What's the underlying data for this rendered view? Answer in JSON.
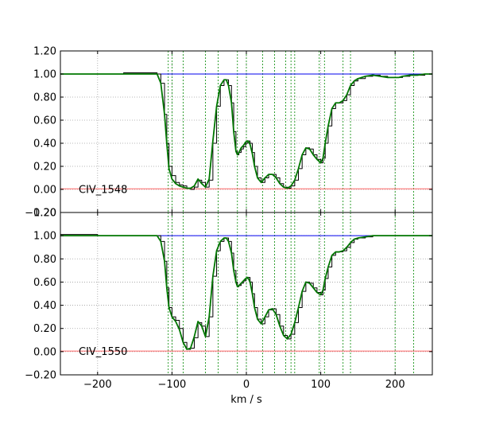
{
  "chart_data": [
    {
      "type": "line",
      "panel_label": "CIV_1548",
      "xlabel": "",
      "ylabel": "",
      "xlim": [
        -250,
        250
      ],
      "ylim": [
        -0.2,
        1.2
      ],
      "yticks": [
        -0.2,
        0.0,
        0.2,
        0.4,
        0.6,
        0.8,
        1.0,
        1.2
      ],
      "yticklabels": [
        "−0.20",
        "0.00",
        "0.20",
        "0.40",
        "0.60",
        "0.80",
        "1.00",
        "1.20"
      ],
      "grid": true,
      "component_velocities": [
        -105,
        -100,
        -85,
        -55,
        -38,
        -12,
        0,
        22,
        38,
        53,
        60,
        65,
        98,
        105,
        130,
        140,
        200,
        225
      ],
      "series": [
        {
          "role": "data",
          "color": "#000000",
          "x": [
            -250,
            -200,
            -165,
            -120,
            -115,
            -110,
            -107,
            -104,
            -100,
            -95,
            -90,
            -85,
            -80,
            -75,
            -70,
            -65,
            -60,
            -55,
            -50,
            -45,
            -40,
            -35,
            -30,
            -27,
            -24,
            -20,
            -17,
            -14,
            -12,
            -10,
            -7,
            -4,
            -1,
            2,
            5,
            8,
            11,
            15,
            20,
            25,
            30,
            35,
            40,
            45,
            50,
            55,
            60,
            65,
            70,
            75,
            80,
            85,
            90,
            95,
            100,
            103,
            106,
            110,
            115,
            120,
            125,
            130,
            135,
            140,
            145,
            150,
            160,
            170,
            180,
            190,
            200,
            205,
            210,
            220,
            230,
            240,
            250
          ],
          "y": [
            1.0,
            1.0,
            1.01,
            1.0,
            0.92,
            0.65,
            0.4,
            0.2,
            0.12,
            0.06,
            0.04,
            0.03,
            0.01,
            0.0,
            0.02,
            0.08,
            0.06,
            0.02,
            0.08,
            0.4,
            0.72,
            0.9,
            0.95,
            0.95,
            0.9,
            0.75,
            0.5,
            0.33,
            0.3,
            0.32,
            0.35,
            0.37,
            0.4,
            0.42,
            0.4,
            0.32,
            0.2,
            0.1,
            0.06,
            0.1,
            0.13,
            0.13,
            0.1,
            0.05,
            0.02,
            0.01,
            0.03,
            0.08,
            0.18,
            0.3,
            0.36,
            0.35,
            0.3,
            0.26,
            0.23,
            0.27,
            0.4,
            0.55,
            0.7,
            0.75,
            0.75,
            0.77,
            0.82,
            0.9,
            0.94,
            0.96,
            0.98,
            0.99,
            0.98,
            0.97,
            0.97,
            0.97,
            0.98,
            0.99,
            0.99,
            1.0,
            1.0
          ]
        },
        {
          "role": "model",
          "color": "#007700",
          "x": [
            -250,
            -200,
            -165,
            -120,
            -115,
            -110,
            -107,
            -104,
            -100,
            -95,
            -90,
            -85,
            -80,
            -75,
            -70,
            -65,
            -60,
            -55,
            -50,
            -45,
            -40,
            -35,
            -30,
            -27,
            -24,
            -20,
            -17,
            -14,
            -12,
            -10,
            -7,
            -4,
            -1,
            2,
            5,
            8,
            11,
            15,
            20,
            25,
            30,
            35,
            40,
            45,
            50,
            55,
            60,
            65,
            70,
            75,
            80,
            85,
            90,
            95,
            100,
            103,
            106,
            110,
            115,
            120,
            125,
            130,
            135,
            140,
            145,
            150,
            160,
            170,
            180,
            190,
            200,
            205,
            210,
            220,
            230,
            240,
            250
          ],
          "y": [
            1.0,
            1.0,
            1.0,
            1.0,
            0.92,
            0.65,
            0.4,
            0.18,
            0.09,
            0.05,
            0.03,
            0.02,
            0.01,
            0.01,
            0.03,
            0.09,
            0.05,
            0.02,
            0.09,
            0.42,
            0.72,
            0.9,
            0.95,
            0.95,
            0.9,
            0.75,
            0.5,
            0.33,
            0.3,
            0.32,
            0.36,
            0.38,
            0.41,
            0.42,
            0.39,
            0.31,
            0.2,
            0.1,
            0.06,
            0.1,
            0.13,
            0.13,
            0.1,
            0.05,
            0.02,
            0.01,
            0.03,
            0.08,
            0.18,
            0.3,
            0.36,
            0.35,
            0.3,
            0.26,
            0.23,
            0.27,
            0.4,
            0.55,
            0.7,
            0.75,
            0.75,
            0.77,
            0.82,
            0.9,
            0.94,
            0.96,
            0.98,
            0.99,
            0.98,
            0.97,
            0.97,
            0.97,
            0.98,
            0.99,
            0.99,
            1.0,
            1.0
          ]
        },
        {
          "role": "continuum",
          "color": "#0000ee",
          "x": [
            -250,
            250
          ],
          "y": [
            1.0,
            1.0
          ]
        },
        {
          "role": "error",
          "color": "#ff6666",
          "x": [
            -250,
            250
          ],
          "y": [
            0.005,
            0.005
          ]
        }
      ]
    },
    {
      "type": "line",
      "panel_label": "CIV_1550",
      "xlabel": "km / s",
      "ylabel": "",
      "xlim": [
        -250,
        250
      ],
      "ylim": [
        -0.2,
        1.2
      ],
      "yticks": [
        -0.2,
        0.0,
        0.2,
        0.4,
        0.6,
        0.8,
        1.0,
        1.2
      ],
      "yticklabels": [
        "−0.20",
        "0.00",
        "0.20",
        "0.40",
        "0.60",
        "0.80",
        "1.00",
        "1.20"
      ],
      "xticks": [
        -200,
        -100,
        0,
        100,
        200
      ],
      "xticklabels": [
        "−200",
        "−100",
        "0",
        "100",
        "200"
      ],
      "grid": true,
      "component_velocities": [
        -105,
        -100,
        -85,
        -55,
        -38,
        -12,
        0,
        22,
        38,
        53,
        60,
        65,
        98,
        105,
        130,
        140,
        200,
        225
      ],
      "series": [
        {
          "role": "data",
          "color": "#000000",
          "x": [
            -250,
            -200,
            -165,
            -120,
            -115,
            -110,
            -107,
            -104,
            -100,
            -95,
            -90,
            -85,
            -80,
            -75,
            -70,
            -65,
            -60,
            -55,
            -50,
            -45,
            -40,
            -35,
            -30,
            -27,
            -24,
            -20,
            -17,
            -14,
            -12,
            -10,
            -7,
            -4,
            -1,
            2,
            5,
            8,
            11,
            15,
            20,
            25,
            30,
            35,
            40,
            45,
            50,
            55,
            60,
            65,
            70,
            75,
            80,
            85,
            90,
            95,
            100,
            103,
            106,
            110,
            115,
            120,
            125,
            130,
            135,
            140,
            145,
            150,
            160,
            170,
            180,
            190,
            200,
            205,
            210,
            220,
            230,
            240,
            250
          ],
          "y": [
            1.01,
            1.0,
            1.0,
            1.0,
            0.95,
            0.78,
            0.55,
            0.38,
            0.3,
            0.27,
            0.2,
            0.08,
            0.02,
            0.03,
            0.12,
            0.25,
            0.22,
            0.13,
            0.3,
            0.65,
            0.87,
            0.95,
            0.98,
            0.98,
            0.95,
            0.85,
            0.7,
            0.6,
            0.56,
            0.57,
            0.59,
            0.61,
            0.63,
            0.64,
            0.6,
            0.5,
            0.38,
            0.28,
            0.24,
            0.3,
            0.36,
            0.37,
            0.32,
            0.22,
            0.14,
            0.11,
            0.15,
            0.25,
            0.38,
            0.52,
            0.6,
            0.59,
            0.55,
            0.51,
            0.49,
            0.53,
            0.63,
            0.73,
            0.83,
            0.86,
            0.86,
            0.87,
            0.9,
            0.94,
            0.97,
            0.98,
            0.99,
            1.0,
            1.0,
            1.0,
            1.0,
            1.0,
            1.0,
            1.0,
            1.0,
            1.0,
            1.0
          ]
        },
        {
          "role": "model",
          "color": "#007700",
          "x": [
            -250,
            -200,
            -165,
            -120,
            -115,
            -110,
            -107,
            -104,
            -100,
            -95,
            -90,
            -85,
            -80,
            -75,
            -70,
            -65,
            -60,
            -55,
            -50,
            -45,
            -40,
            -35,
            -30,
            -27,
            -24,
            -20,
            -17,
            -14,
            -12,
            -10,
            -7,
            -4,
            -1,
            2,
            5,
            8,
            11,
            15,
            20,
            25,
            30,
            35,
            40,
            45,
            50,
            55,
            60,
            65,
            70,
            75,
            80,
            85,
            90,
            95,
            100,
            103,
            106,
            110,
            115,
            120,
            125,
            130,
            135,
            140,
            145,
            150,
            160,
            170,
            180,
            190,
            200,
            205,
            210,
            220,
            230,
            240,
            250
          ],
          "y": [
            1.0,
            1.0,
            1.0,
            1.0,
            0.95,
            0.78,
            0.55,
            0.38,
            0.3,
            0.26,
            0.19,
            0.08,
            0.02,
            0.03,
            0.13,
            0.26,
            0.22,
            0.13,
            0.3,
            0.65,
            0.87,
            0.95,
            0.98,
            0.98,
            0.95,
            0.85,
            0.7,
            0.6,
            0.56,
            0.57,
            0.59,
            0.61,
            0.63,
            0.64,
            0.6,
            0.5,
            0.38,
            0.28,
            0.24,
            0.3,
            0.36,
            0.37,
            0.32,
            0.22,
            0.14,
            0.11,
            0.15,
            0.25,
            0.38,
            0.52,
            0.6,
            0.59,
            0.55,
            0.51,
            0.49,
            0.53,
            0.63,
            0.73,
            0.83,
            0.86,
            0.86,
            0.87,
            0.9,
            0.94,
            0.97,
            0.98,
            0.99,
            1.0,
            1.0,
            1.0,
            1.0,
            1.0,
            1.0,
            1.0,
            1.0,
            1.0,
            1.0
          ]
        },
        {
          "role": "continuum",
          "color": "#0000ee",
          "x": [
            -250,
            250
          ],
          "y": [
            1.0,
            1.0
          ]
        },
        {
          "role": "error",
          "color": "#ff6666",
          "x": [
            -250,
            250
          ],
          "y": [
            0.005,
            0.005
          ]
        }
      ]
    }
  ]
}
